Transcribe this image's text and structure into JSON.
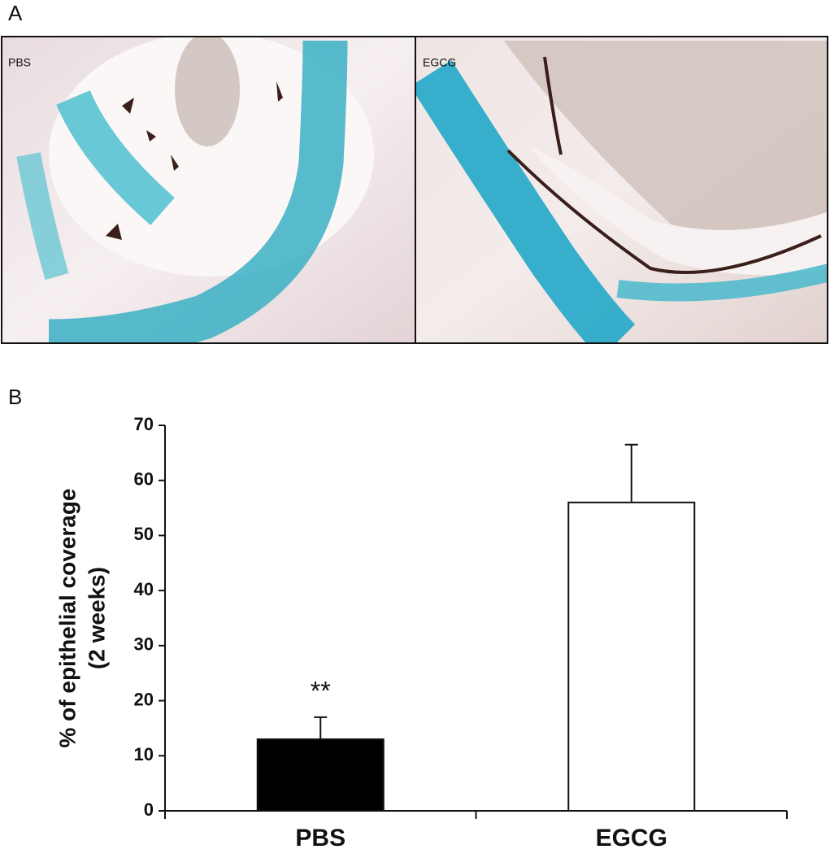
{
  "figure": {
    "panel_a_label": "A",
    "panel_b_label": "B",
    "image_labels": [
      "PBS",
      "EGCG"
    ]
  },
  "chart_data": {
    "type": "bar",
    "y_label": [
      "% of epithelial coverage",
      "(2 weeks)"
    ],
    "categories": [
      "PBS",
      "EGCG"
    ],
    "values": [
      13,
      56
    ],
    "errors": [
      4,
      10.5
    ],
    "colors": [
      "#000000",
      "#ffffff"
    ],
    "annotations": [
      {
        "category": 0,
        "text": "**"
      }
    ],
    "ylim": [
      0,
      70
    ],
    "yticks": [
      0,
      10,
      20,
      30,
      40,
      50,
      60,
      70
    ],
    "grid": false
  }
}
